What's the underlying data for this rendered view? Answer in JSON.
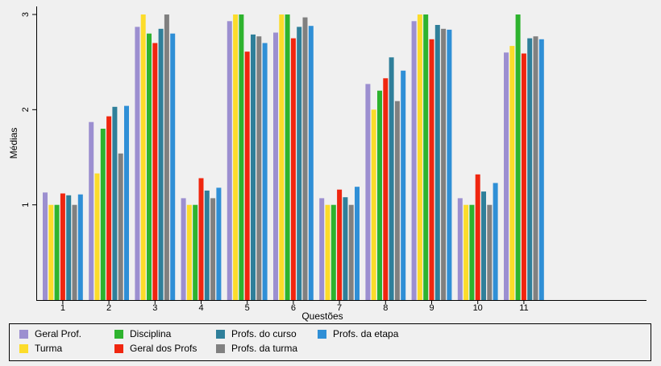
{
  "chart_data": {
    "type": "bar",
    "xlabel": "Questões",
    "ylabel": "Médias",
    "ylim": [
      0,
      3.1
    ],
    "yticks": [
      1,
      2,
      3
    ],
    "categories": [
      "1",
      "2",
      "3",
      "4",
      "5",
      "6",
      "7",
      "8",
      "9",
      "10",
      "11"
    ],
    "legend_position": "bottom",
    "series": [
      {
        "name": "Geral Prof.",
        "color": "#9c8fd0",
        "values": [
          1.13,
          1.87,
          2.87,
          1.07,
          2.93,
          2.81,
          1.07,
          2.27,
          2.93,
          1.07,
          2.6
        ]
      },
      {
        "name": "Turma",
        "color": "#fcdc2a",
        "values": [
          1.0,
          1.33,
          3.0,
          1.0,
          3.0,
          3.0,
          1.0,
          2.0,
          3.0,
          1.0,
          2.67
        ]
      },
      {
        "name": "Disciplina",
        "color": "#2eb32e",
        "values": [
          1.0,
          1.8,
          2.8,
          1.0,
          3.0,
          3.0,
          1.0,
          2.2,
          3.0,
          1.0,
          3.0
        ]
      },
      {
        "name": "Geral dos Profs",
        "color": "#f0260f",
        "values": [
          1.12,
          1.93,
          2.7,
          1.28,
          2.61,
          2.75,
          1.16,
          2.33,
          2.74,
          1.32,
          2.59
        ]
      },
      {
        "name": "Profs. do curso",
        "color": "#2f7f9a",
        "values": [
          1.1,
          2.03,
          2.85,
          1.15,
          2.79,
          2.87,
          1.08,
          2.55,
          2.89,
          1.14,
          2.75
        ]
      },
      {
        "name": "Profs. da turma",
        "color": "#808080",
        "values": [
          1.0,
          1.54,
          3.0,
          1.07,
          2.77,
          2.97,
          1.0,
          2.09,
          2.85,
          1.0,
          2.77
        ]
      },
      {
        "name": "Profs. da etapa",
        "color": "#2f8fd6",
        "values": [
          1.11,
          2.04,
          2.8,
          1.18,
          2.7,
          2.88,
          1.19,
          2.41,
          2.84,
          1.23,
          2.74
        ]
      }
    ]
  }
}
